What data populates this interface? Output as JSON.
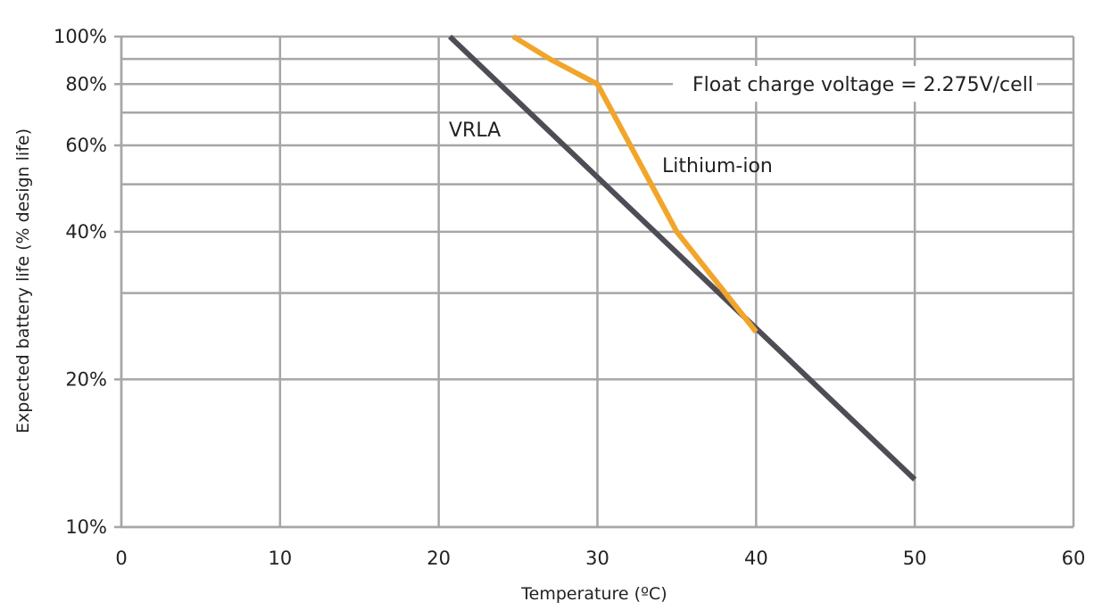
{
  "chart_data": {
    "type": "line",
    "title": "",
    "xlabel": "Temperature (ºC)",
    "ylabel": "Expected battery life (% design life)",
    "xlim": [
      0,
      60
    ],
    "ylim": [
      10,
      100
    ],
    "yscale": "log",
    "grid": true,
    "x_ticks": [
      0,
      10,
      20,
      30,
      40,
      50,
      60
    ],
    "x_tick_labels": [
      "0",
      "10",
      "20",
      "30",
      "40",
      "50",
      "60"
    ],
    "y_ticks": [
      10,
      20,
      40,
      60,
      80,
      100
    ],
    "y_tick_labels": [
      "10%",
      "20%",
      "40%",
      "60%",
      "80%",
      "100%"
    ],
    "y_minor_gridlines": [
      30,
      50,
      70,
      90
    ],
    "series": [
      {
        "name": "VRLA",
        "color": "#4d4d55",
        "x": [
          20.7,
          50
        ],
        "y": [
          100,
          12.5
        ]
      },
      {
        "name": "Lithium-ion",
        "color": "#f2a52b",
        "x": [
          24.7,
          27,
          30,
          35,
          40
        ],
        "y": [
          100,
          90,
          80,
          40,
          25
        ]
      }
    ],
    "annotations": [
      {
        "text": "Float charge voltage = 2.275V/cell"
      }
    ]
  }
}
